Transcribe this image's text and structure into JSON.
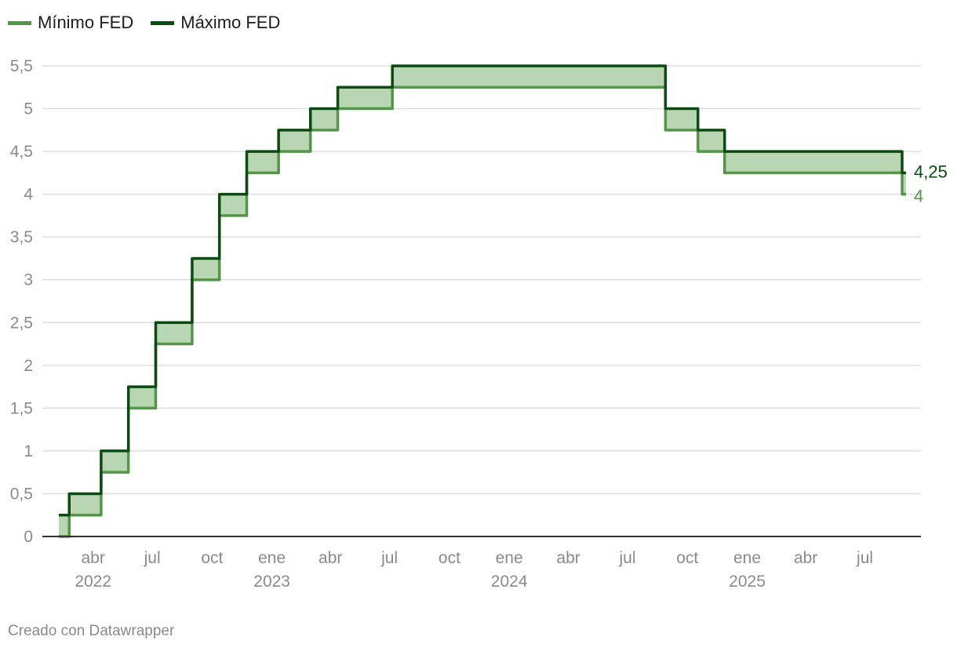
{
  "legend": [
    {
      "label": "Mínimo FED",
      "color": "#54954a"
    },
    {
      "label": "Máximo FED",
      "color": "#0b4a11"
    }
  ],
  "footer": "Creado con Datawrapper",
  "colors": {
    "min": "#54954a",
    "max": "#0b4a11",
    "band": "#b7d6b1"
  },
  "chart_data": {
    "type": "area",
    "title": "",
    "xlabel": "",
    "ylabel": "",
    "step": true,
    "x_range": [
      "2022-03-01",
      "2025-09-24"
    ],
    "ylim": [
      0,
      5.5
    ],
    "y_ticks": [
      {
        "value": 0,
        "label": "0"
      },
      {
        "value": 0.5,
        "label": "0,5"
      },
      {
        "value": 1,
        "label": "1"
      },
      {
        "value": 1.5,
        "label": "1,5"
      },
      {
        "value": 2,
        "label": "2"
      },
      {
        "value": 2.5,
        "label": "2,5"
      },
      {
        "value": 3,
        "label": "3"
      },
      {
        "value": 3.5,
        "label": "3,5"
      },
      {
        "value": 4,
        "label": "4"
      },
      {
        "value": 4.5,
        "label": "4,5"
      },
      {
        "value": 5,
        "label": "5"
      },
      {
        "value": 5.5,
        "label": "5,5"
      }
    ],
    "x_ticks": [
      {
        "date": "2022-04-01",
        "label": "abr",
        "year": "2022"
      },
      {
        "date": "2022-07-01",
        "label": "jul",
        "year": ""
      },
      {
        "date": "2022-10-01",
        "label": "oct",
        "year": ""
      },
      {
        "date": "2023-01-01",
        "label": "ene",
        "year": "2023"
      },
      {
        "date": "2023-04-01",
        "label": "abr",
        "year": ""
      },
      {
        "date": "2023-07-01",
        "label": "jul",
        "year": ""
      },
      {
        "date": "2023-10-01",
        "label": "oct",
        "year": ""
      },
      {
        "date": "2024-01-01",
        "label": "ene",
        "year": "2024"
      },
      {
        "date": "2024-04-01",
        "label": "abr",
        "year": ""
      },
      {
        "date": "2024-07-01",
        "label": "jul",
        "year": ""
      },
      {
        "date": "2024-10-01",
        "label": "oct",
        "year": ""
      },
      {
        "date": "2025-01-01",
        "label": "ene",
        "year": "2025"
      },
      {
        "date": "2025-04-01",
        "label": "abr",
        "year": ""
      },
      {
        "date": "2025-07-01",
        "label": "jul",
        "year": ""
      }
    ],
    "series": [
      {
        "name": "Mínimo FED",
        "data": [
          [
            "2022-03-01",
            0
          ],
          [
            "2022-03-17",
            0.25
          ],
          [
            "2022-05-05",
            0.75
          ],
          [
            "2022-06-16",
            1.5
          ],
          [
            "2022-07-28",
            2.25
          ],
          [
            "2022-09-22",
            3
          ],
          [
            "2022-11-03",
            3.75
          ],
          [
            "2022-12-15",
            4.25
          ],
          [
            "2023-02-02",
            4.5
          ],
          [
            "2023-03-23",
            4.75
          ],
          [
            "2023-05-04",
            5
          ],
          [
            "2023-07-27",
            5.25
          ],
          [
            "2024-09-19",
            4.75
          ],
          [
            "2024-11-08",
            4.5
          ],
          [
            "2024-12-19",
            4.25
          ],
          [
            "2025-09-18",
            4
          ],
          [
            "2025-09-24",
            4
          ]
        ]
      },
      {
        "name": "Máximo FED",
        "data": [
          [
            "2022-03-01",
            0.25
          ],
          [
            "2022-03-17",
            0.5
          ],
          [
            "2022-05-05",
            1
          ],
          [
            "2022-06-16",
            1.75
          ],
          [
            "2022-07-28",
            2.5
          ],
          [
            "2022-09-22",
            3.25
          ],
          [
            "2022-11-03",
            4
          ],
          [
            "2022-12-15",
            4.5
          ],
          [
            "2023-02-02",
            4.75
          ],
          [
            "2023-03-23",
            5
          ],
          [
            "2023-05-04",
            5.25
          ],
          [
            "2023-07-27",
            5.5
          ],
          [
            "2024-09-19",
            5
          ],
          [
            "2024-11-08",
            4.75
          ],
          [
            "2024-12-19",
            4.5
          ],
          [
            "2025-09-18",
            4.25
          ],
          [
            "2025-09-24",
            4.25
          ]
        ]
      }
    ],
    "end_labels": [
      {
        "series": "Máximo FED",
        "label": "4,25"
      },
      {
        "series": "Mínimo FED",
        "label": "4"
      }
    ]
  }
}
